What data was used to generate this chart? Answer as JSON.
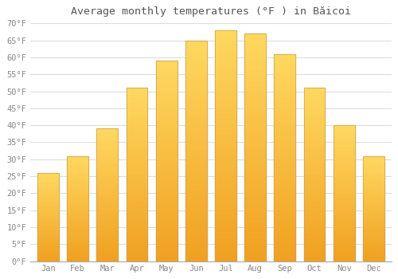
{
  "title": "Average monthly temperatures (°F ) in Băicoi",
  "months": [
    "Jan",
    "Feb",
    "Mar",
    "Apr",
    "May",
    "Jun",
    "Jul",
    "Aug",
    "Sep",
    "Oct",
    "Nov",
    "Dec"
  ],
  "values": [
    26,
    31,
    39,
    51,
    59,
    65,
    68,
    67,
    61,
    51,
    40,
    31
  ],
  "bar_color_bottom": "#F0A020",
  "bar_color_top": "#FFD860",
  "bar_border_color": "#C8A060",
  "ylim": [
    0,
    70
  ],
  "ytick_step": 5,
  "background_color": "#ffffff",
  "grid_color": "#dddddd",
  "title_fontsize": 9.5,
  "tick_fontsize": 7.5,
  "font_family": "monospace",
  "title_color": "#555555",
  "tick_color": "#888888"
}
